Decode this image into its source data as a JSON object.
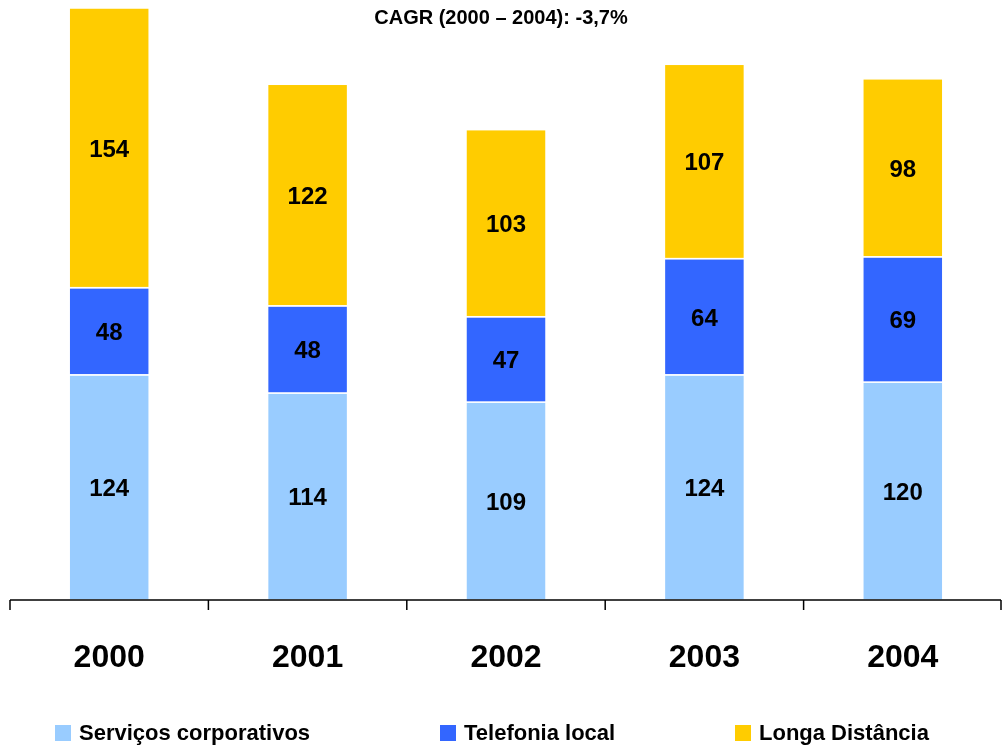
{
  "chart_data": {
    "type": "bar",
    "title": "CAGR (2000 – 2004): -3,7%",
    "categories": [
      "2000",
      "2001",
      "2002",
      "2003",
      "2004"
    ],
    "stacked": true,
    "data_labels": true,
    "legend": "bottom",
    "ylim": [
      0,
      326
    ],
    "series": [
      {
        "name": "Serviços corporativos",
        "color": "#99ccff",
        "values": [
          124,
          114,
          109,
          124,
          120
        ]
      },
      {
        "name": "Telefonia local",
        "color": "#3366ff",
        "values": [
          48,
          48,
          47,
          64,
          69
        ]
      },
      {
        "name": "Longa Distância",
        "color": "#ffcc00",
        "values": [
          154,
          122,
          103,
          107,
          98
        ]
      }
    ]
  }
}
